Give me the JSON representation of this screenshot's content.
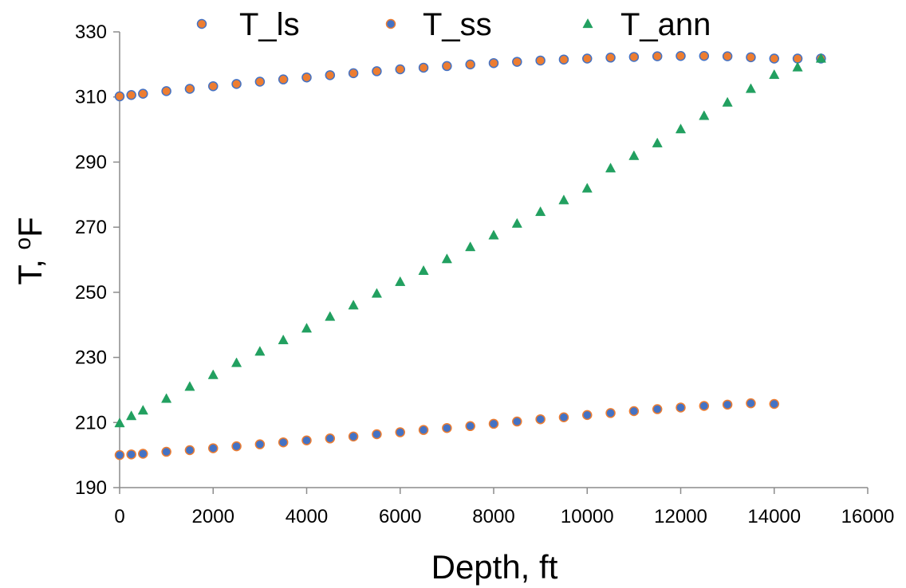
{
  "chart_data": {
    "type": "scatter",
    "xlabel": "Depth, ft",
    "ylabel_main": "T, ",
    "ylabel_super": "o",
    "ylabel_unit": "F",
    "xlim": [
      0,
      16000
    ],
    "ylim": [
      190,
      330
    ],
    "xticks": [
      0,
      2000,
      4000,
      6000,
      8000,
      10000,
      12000,
      14000,
      16000
    ],
    "yticks": [
      190,
      210,
      230,
      250,
      270,
      290,
      310,
      330
    ],
    "grid": false,
    "legend_position": "top",
    "series": [
      {
        "name": "T_ls",
        "marker": "circle",
        "fill": "#ED7D31",
        "stroke": "#4472C4",
        "x": [
          0,
          250,
          500,
          1000,
          1500,
          2000,
          2500,
          3000,
          3500,
          4000,
          4500,
          5000,
          5500,
          6000,
          6500,
          7000,
          7500,
          8000,
          8500,
          9000,
          9500,
          10000,
          10500,
          11000,
          11500,
          12000,
          12500,
          13000,
          13500,
          14000,
          14500,
          15000
        ],
        "y": [
          310.2,
          310.6,
          311.0,
          311.8,
          312.5,
          313.3,
          314.0,
          314.7,
          315.4,
          316.0,
          316.7,
          317.3,
          317.9,
          318.5,
          319.0,
          319.5,
          320.0,
          320.4,
          320.8,
          321.2,
          321.5,
          321.8,
          322.1,
          322.3,
          322.5,
          322.6,
          322.6,
          322.5,
          322.2,
          321.8,
          321.8,
          321.8
        ]
      },
      {
        "name": "T_ss",
        "marker": "circle",
        "fill": "#4472C4",
        "stroke": "#ED7D31",
        "x": [
          0,
          250,
          500,
          1000,
          1500,
          2000,
          2500,
          3000,
          3500,
          4000,
          4500,
          5000,
          5500,
          6000,
          6500,
          7000,
          7500,
          8000,
          8500,
          9000,
          9500,
          10000,
          10500,
          11000,
          11500,
          12000,
          12500,
          13000,
          13500,
          14000
        ],
        "y": [
          200.0,
          200.2,
          200.4,
          201.0,
          201.5,
          202.1,
          202.7,
          203.3,
          203.9,
          204.5,
          205.1,
          205.7,
          206.4,
          207.0,
          207.7,
          208.3,
          208.9,
          209.6,
          210.3,
          211.0,
          211.6,
          212.3,
          212.9,
          213.5,
          214.1,
          214.6,
          215.1,
          215.5,
          215.9,
          215.7
        ]
      },
      {
        "name": "T_ann",
        "marker": "triangle",
        "fill": "#22A060",
        "stroke": "#22A060",
        "x": [
          0,
          250,
          500,
          1000,
          1500,
          2000,
          2500,
          3000,
          3500,
          4000,
          4500,
          5000,
          5500,
          6000,
          6500,
          7000,
          7500,
          8000,
          8500,
          9000,
          9500,
          10000,
          10500,
          11000,
          11500,
          12000,
          12500,
          13000,
          13500,
          14000,
          14500,
          15000
        ],
        "y": [
          209.8,
          212.0,
          213.7,
          217.3,
          221.0,
          224.6,
          228.3,
          231.8,
          235.3,
          238.9,
          242.5,
          246.0,
          249.6,
          253.2,
          256.6,
          260.2,
          263.9,
          267.5,
          271.1,
          274.7,
          278.3,
          281.9,
          288.1,
          291.9,
          295.8,
          300.1,
          304.2,
          308.3,
          312.5,
          316.8,
          319.1,
          321.8
        ]
      }
    ]
  }
}
